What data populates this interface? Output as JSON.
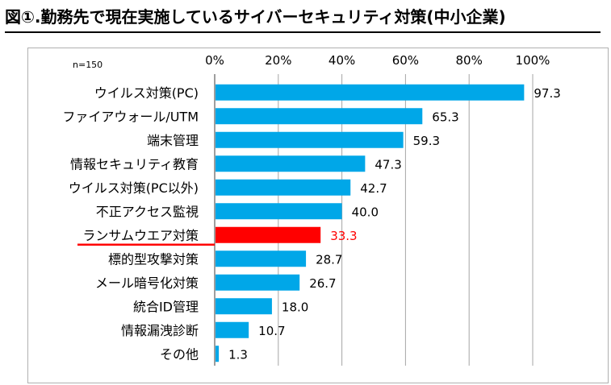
{
  "title": "図①.勤務先で現在実施しているサイバーセキュリティ対策(中小企業)",
  "chart_data": {
    "type": "bar",
    "orientation": "horizontal",
    "sample_size_label": "n=150",
    "xlim": [
      0,
      100
    ],
    "xticks": [
      "0%",
      "20%",
      "40%",
      "60%",
      "80%",
      "100%"
    ],
    "grid": true,
    "categories": [
      "ウイルス対策(PC)",
      "ファイアウォール/UTM",
      "端末管理",
      "情報セキュリティ教育",
      "ウイルス対策(PC以外)",
      "不正アクセス監視",
      "ランサムウエア対策",
      "標的型攻撃対策",
      "メール暗号化対策",
      "統合ID管理",
      "情報漏洩診断",
      "その他"
    ],
    "values": [
      97.3,
      65.3,
      59.3,
      47.3,
      42.7,
      40.0,
      33.3,
      28.7,
      26.7,
      18.0,
      10.7,
      1.3
    ],
    "value_labels": [
      "97.3",
      "65.3",
      "59.3",
      "47.3",
      "42.7",
      "40.0",
      "33.3",
      "28.7",
      "26.7",
      "18.0",
      "10.7",
      "1.3"
    ],
    "highlight_index": 6,
    "colors": {
      "bar": "#00a7e8",
      "highlight": "#ff0000",
      "grid": "#a6a6a6"
    }
  }
}
